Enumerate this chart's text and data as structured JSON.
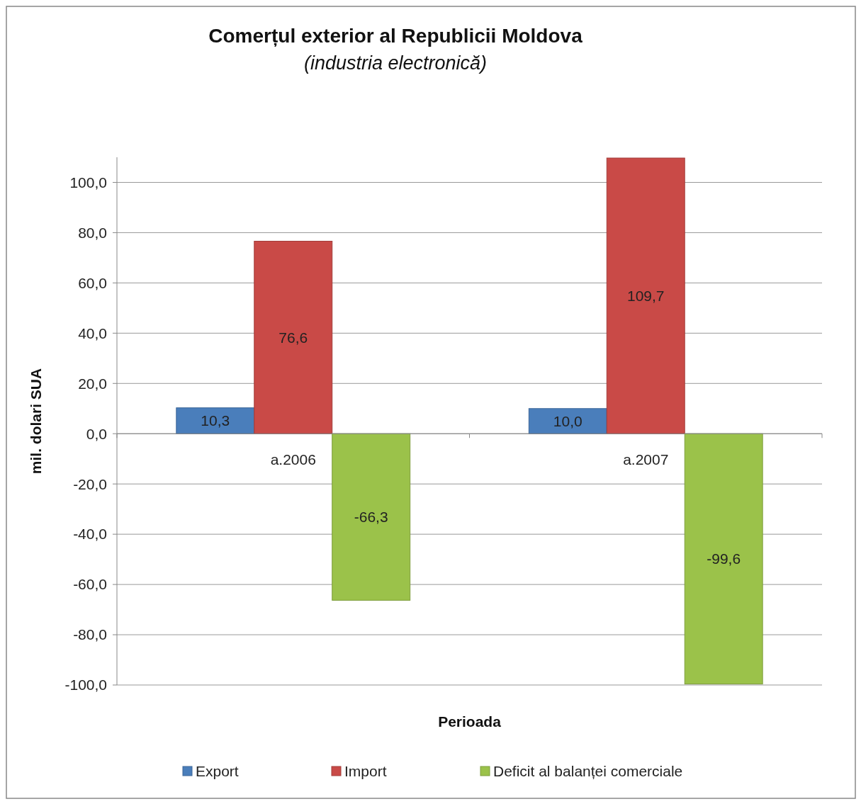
{
  "chart_data": {
    "type": "bar",
    "title": "Comerțul exterior al Republicii Moldova",
    "subtitle": "(industria electronică)",
    "xlabel": "Perioada",
    "ylabel": "mil. dolari  SUA",
    "categories": [
      "a.2006",
      "a.2007"
    ],
    "series": [
      {
        "name": "Export",
        "color": "#4a7ebb",
        "values": [
          10.3,
          10.0
        ],
        "value_labels": [
          "10,3",
          "10,0"
        ]
      },
      {
        "name": "Import",
        "color": "#c94a47",
        "values": [
          76.6,
          109.7
        ],
        "value_labels": [
          "76,6",
          "109,7"
        ]
      },
      {
        "name": "Deficit al balanței comerciale",
        "color": "#9bc24a",
        "values": [
          -66.3,
          -99.6
        ],
        "value_labels": [
          "-66,3",
          "-99,6"
        ]
      }
    ],
    "ylim": [
      -100,
      110
    ],
    "yticks": [
      {
        "value": -100,
        "label": "-100,0"
      },
      {
        "value": -80,
        "label": "-80,0"
      },
      {
        "value": -60,
        "label": "-60,0"
      },
      {
        "value": -40,
        "label": "-40,0"
      },
      {
        "value": -20,
        "label": "-20,0"
      },
      {
        "value": 0,
        "label": "0,0"
      },
      {
        "value": 20,
        "label": "20,0"
      },
      {
        "value": 40,
        "label": "40,0"
      },
      {
        "value": 60,
        "label": "60,0"
      },
      {
        "value": 80,
        "label": "80,0"
      },
      {
        "value": 100,
        "label": "100,0"
      }
    ],
    "grid": "y",
    "legend": "bottom"
  }
}
